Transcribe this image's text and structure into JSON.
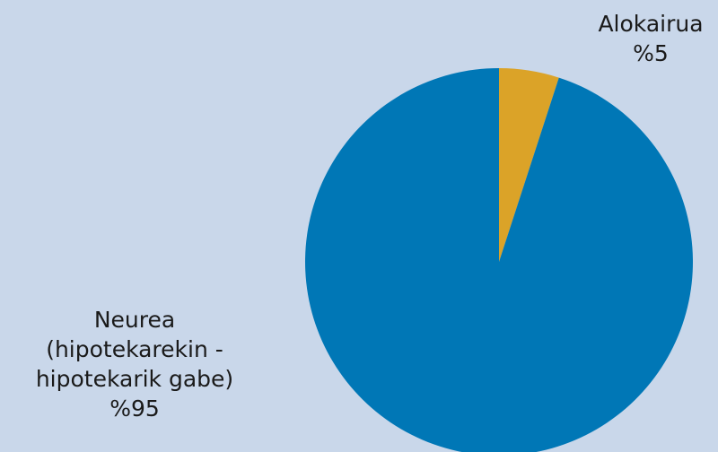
{
  "chart_data": {
    "type": "pie",
    "slices": [
      {
        "label": "Alokairua",
        "value": 5,
        "value_label": "%5",
        "color": "#dba328"
      },
      {
        "label": "Neurea\n(hipotekarekin -\nhipotekarik gabe)",
        "value": 95,
        "value_label": "%95",
        "color": "#0077b6"
      }
    ],
    "start": "12 o'clock",
    "direction": "clockwise"
  }
}
